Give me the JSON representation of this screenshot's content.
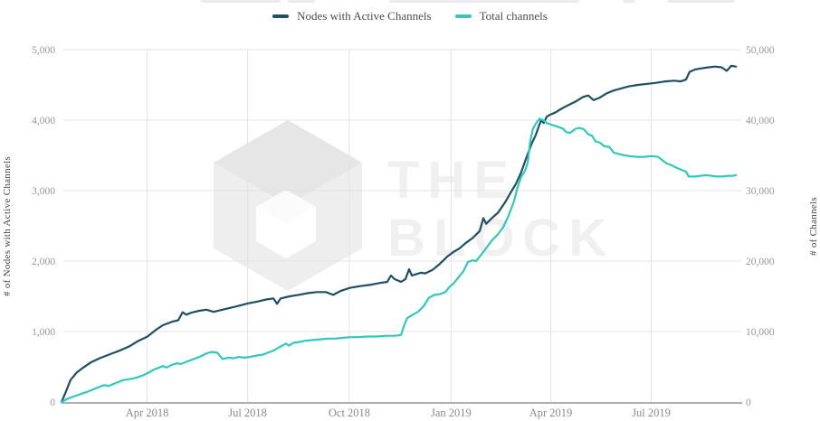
{
  "legend": {
    "items": [
      {
        "label": "Nodes with Active Channels",
        "color": "#1f4f63"
      },
      {
        "label": "Total channels",
        "color": "#31c7bd"
      }
    ]
  },
  "watermark": {
    "line1": "THE",
    "line2": "BLOCK"
  },
  "colors": {
    "grid": "#e3e3e3",
    "axis_line": "#b0b0b0",
    "tick_label": "#979797",
    "x_label": "#8a8a8a"
  },
  "chart_data": {
    "type": "line",
    "title": "",
    "x_axis": {
      "range": [
        2018.035,
        2019.71
      ],
      "ticks": [
        {
          "t": 2018.247,
          "label": "Apr 2018"
        },
        {
          "t": 2018.496,
          "label": "Jul 2018"
        },
        {
          "t": 2018.748,
          "label": "Oct 2018"
        },
        {
          "t": 2019.0,
          "label": "Jan 2019"
        },
        {
          "t": 2019.247,
          "label": "Apr 2019"
        },
        {
          "t": 2019.496,
          "label": "Jul 2019"
        }
      ]
    },
    "y_left": {
      "label": "# of Nodes with Active Channels",
      "range": [
        0,
        5000
      ],
      "ticks": [
        0,
        1000,
        2000,
        3000,
        4000,
        5000
      ],
      "grid": true
    },
    "y_right": {
      "label": "# of Channels",
      "range": [
        0,
        50000
      ],
      "ticks": [
        0,
        10000,
        20000,
        30000,
        40000,
        50000
      ]
    },
    "series": [
      {
        "name": "Nodes with Active Channels",
        "axis": "left",
        "color": "#1f4f63",
        "points": [
          [
            2018.035,
            0
          ],
          [
            2018.044,
            120
          ],
          [
            2018.057,
            310
          ],
          [
            2018.073,
            420
          ],
          [
            2018.089,
            490
          ],
          [
            2018.107,
            560
          ],
          [
            2018.129,
            620
          ],
          [
            2018.147,
            660
          ],
          [
            2018.165,
            700
          ],
          [
            2018.183,
            740
          ],
          [
            2018.203,
            790
          ],
          [
            2018.223,
            860
          ],
          [
            2018.248,
            930
          ],
          [
            2018.268,
            1020
          ],
          [
            2018.286,
            1090
          ],
          [
            2018.309,
            1140
          ],
          [
            2018.324,
            1160
          ],
          [
            2018.335,
            1275
          ],
          [
            2018.344,
            1240
          ],
          [
            2018.358,
            1270
          ],
          [
            2018.376,
            1295
          ],
          [
            2018.394,
            1310
          ],
          [
            2018.412,
            1280
          ],
          [
            2018.43,
            1305
          ],
          [
            2018.448,
            1330
          ],
          [
            2018.47,
            1360
          ],
          [
            2018.497,
            1400
          ],
          [
            2018.519,
            1425
          ],
          [
            2018.542,
            1455
          ],
          [
            2018.56,
            1470
          ],
          [
            2018.569,
            1395
          ],
          [
            2018.578,
            1470
          ],
          [
            2018.6,
            1500
          ],
          [
            2018.622,
            1520
          ],
          [
            2018.645,
            1545
          ],
          [
            2018.667,
            1560
          ],
          [
            2018.69,
            1560
          ],
          [
            2018.708,
            1520
          ],
          [
            2018.726,
            1575
          ],
          [
            2018.75,
            1620
          ],
          [
            2018.775,
            1645
          ],
          [
            2018.802,
            1665
          ],
          [
            2018.824,
            1690
          ],
          [
            2018.842,
            1705
          ],
          [
            2018.851,
            1795
          ],
          [
            2018.86,
            1745
          ],
          [
            2018.876,
            1705
          ],
          [
            2018.887,
            1745
          ],
          [
            2018.896,
            1885
          ],
          [
            2018.903,
            1795
          ],
          [
            2018.914,
            1815
          ],
          [
            2018.925,
            1835
          ],
          [
            2018.936,
            1825
          ],
          [
            2018.954,
            1875
          ],
          [
            2018.972,
            1960
          ],
          [
            2018.99,
            2060
          ],
          [
            2019.006,
            2130
          ],
          [
            2019.022,
            2185
          ],
          [
            2019.037,
            2260
          ],
          [
            2019.053,
            2325
          ],
          [
            2019.071,
            2425
          ],
          [
            2019.08,
            2610
          ],
          [
            2019.087,
            2530
          ],
          [
            2019.102,
            2615
          ],
          [
            2019.116,
            2685
          ],
          [
            2019.134,
            2835
          ],
          [
            2019.149,
            2985
          ],
          [
            2019.161,
            3100
          ],
          [
            2019.174,
            3265
          ],
          [
            2019.188,
            3490
          ],
          [
            2019.201,
            3685
          ],
          [
            2019.21,
            3790
          ],
          [
            2019.217,
            3905
          ],
          [
            2019.223,
            3995
          ],
          [
            2019.23,
            3960
          ],
          [
            2019.237,
            4050
          ],
          [
            2019.246,
            4080
          ],
          [
            2019.257,
            4105
          ],
          [
            2019.273,
            4160
          ],
          [
            2019.291,
            4215
          ],
          [
            2019.309,
            4265
          ],
          [
            2019.327,
            4330
          ],
          [
            2019.34,
            4350
          ],
          [
            2019.353,
            4285
          ],
          [
            2019.367,
            4315
          ],
          [
            2019.385,
            4380
          ],
          [
            2019.403,
            4420
          ],
          [
            2019.421,
            4450
          ],
          [
            2019.441,
            4480
          ],
          [
            2019.463,
            4500
          ],
          [
            2019.486,
            4515
          ],
          [
            2019.508,
            4530
          ],
          [
            2019.531,
            4550
          ],
          [
            2019.553,
            4560
          ],
          [
            2019.569,
            4550
          ],
          [
            2019.582,
            4575
          ],
          [
            2019.591,
            4685
          ],
          [
            2019.605,
            4720
          ],
          [
            2019.62,
            4735
          ],
          [
            2019.638,
            4750
          ],
          [
            2019.654,
            4760
          ],
          [
            2019.67,
            4750
          ],
          [
            2019.683,
            4700
          ],
          [
            2019.694,
            4770
          ],
          [
            2019.706,
            4760
          ]
        ]
      },
      {
        "name": "Total channels",
        "axis": "right",
        "color": "#31c7bd",
        "points": [
          [
            2018.035,
            0
          ],
          [
            2018.051,
            500
          ],
          [
            2018.073,
            950
          ],
          [
            2018.096,
            1400
          ],
          [
            2018.118,
            1900
          ],
          [
            2018.14,
            2400
          ],
          [
            2018.152,
            2300
          ],
          [
            2018.17,
            2700
          ],
          [
            2018.187,
            3100
          ],
          [
            2018.208,
            3300
          ],
          [
            2018.223,
            3500
          ],
          [
            2018.237,
            3800
          ],
          [
            2018.248,
            4100
          ],
          [
            2018.264,
            4600
          ],
          [
            2018.277,
            4900
          ],
          [
            2018.286,
            5100
          ],
          [
            2018.295,
            4900
          ],
          [
            2018.309,
            5300
          ],
          [
            2018.322,
            5500
          ],
          [
            2018.331,
            5400
          ],
          [
            2018.344,
            5700
          ],
          [
            2018.358,
            6000
          ],
          [
            2018.376,
            6400
          ],
          [
            2018.394,
            6900
          ],
          [
            2018.407,
            7100
          ],
          [
            2018.421,
            7000
          ],
          [
            2018.434,
            6100
          ],
          [
            2018.448,
            6300
          ],
          [
            2018.461,
            6200
          ],
          [
            2018.474,
            6400
          ],
          [
            2018.488,
            6300
          ],
          [
            2018.501,
            6400
          ],
          [
            2018.519,
            6600
          ],
          [
            2018.533,
            6700
          ],
          [
            2018.546,
            7000
          ],
          [
            2018.56,
            7300
          ],
          [
            2018.578,
            7900
          ],
          [
            2018.591,
            8300
          ],
          [
            2018.598,
            8000
          ],
          [
            2018.609,
            8400
          ],
          [
            2018.622,
            8500
          ],
          [
            2018.64,
            8700
          ],
          [
            2018.658,
            8800
          ],
          [
            2018.676,
            8900
          ],
          [
            2018.694,
            9000
          ],
          [
            2018.712,
            9000
          ],
          [
            2018.73,
            9100
          ],
          [
            2018.75,
            9200
          ],
          [
            2018.77,
            9200
          ],
          [
            2018.793,
            9300
          ],
          [
            2018.815,
            9300
          ],
          [
            2018.838,
            9400
          ],
          [
            2018.86,
            9400
          ],
          [
            2018.876,
            9500
          ],
          [
            2018.882,
            10600
          ],
          [
            2018.891,
            11900
          ],
          [
            2018.905,
            12400
          ],
          [
            2018.918,
            12800
          ],
          [
            2018.932,
            13600
          ],
          [
            2018.945,
            14800
          ],
          [
            2018.959,
            15200
          ],
          [
            2018.972,
            15300
          ],
          [
            2018.986,
            15600
          ],
          [
            2018.997,
            16400
          ],
          [
            2019.006,
            16800
          ],
          [
            2019.017,
            17600
          ],
          [
            2019.031,
            18600
          ],
          [
            2019.042,
            19900
          ],
          [
            2019.053,
            20100
          ],
          [
            2019.062,
            20000
          ],
          [
            2019.076,
            21000
          ],
          [
            2019.089,
            22000
          ],
          [
            2019.102,
            23000
          ],
          [
            2019.116,
            23800
          ],
          [
            2019.129,
            24800
          ],
          [
            2019.143,
            26500
          ],
          [
            2019.156,
            28500
          ],
          [
            2019.165,
            30500
          ],
          [
            2019.174,
            32000
          ],
          [
            2019.183,
            32800
          ],
          [
            2019.19,
            34000
          ],
          [
            2019.196,
            37000
          ],
          [
            2019.203,
            38800
          ],
          [
            2019.21,
            39500
          ],
          [
            2019.219,
            40200
          ],
          [
            2019.228,
            40000
          ],
          [
            2019.237,
            39600
          ],
          [
            2019.246,
            39400
          ],
          [
            2019.257,
            39200
          ],
          [
            2019.268,
            39000
          ],
          [
            2019.277,
            38800
          ],
          [
            2019.286,
            38300
          ],
          [
            2019.295,
            38200
          ],
          [
            2019.309,
            38800
          ],
          [
            2019.318,
            38900
          ],
          [
            2019.329,
            38700
          ],
          [
            2019.34,
            38000
          ],
          [
            2019.349,
            37800
          ],
          [
            2019.358,
            37000
          ],
          [
            2019.369,
            36800
          ],
          [
            2019.38,
            36300
          ],
          [
            2019.392,
            36200
          ],
          [
            2019.403,
            35400
          ],
          [
            2019.416,
            35200
          ],
          [
            2019.43,
            35000
          ],
          [
            2019.443,
            34900
          ],
          [
            2019.461,
            34800
          ],
          [
            2019.479,
            34800
          ],
          [
            2019.497,
            34900
          ],
          [
            2019.513,
            34800
          ],
          [
            2019.524,
            34300
          ],
          [
            2019.533,
            33900
          ],
          [
            2019.546,
            33600
          ],
          [
            2019.56,
            33200
          ],
          [
            2019.573,
            32900
          ],
          [
            2019.582,
            32700
          ],
          [
            2019.589,
            32000
          ],
          [
            2019.605,
            32000
          ],
          [
            2019.618,
            32100
          ],
          [
            2019.632,
            32200
          ],
          [
            2019.645,
            32100
          ],
          [
            2019.658,
            32000
          ],
          [
            2019.672,
            32000
          ],
          [
            2019.685,
            32100
          ],
          [
            2019.699,
            32100
          ],
          [
            2019.706,
            32200
          ]
        ]
      }
    ]
  }
}
